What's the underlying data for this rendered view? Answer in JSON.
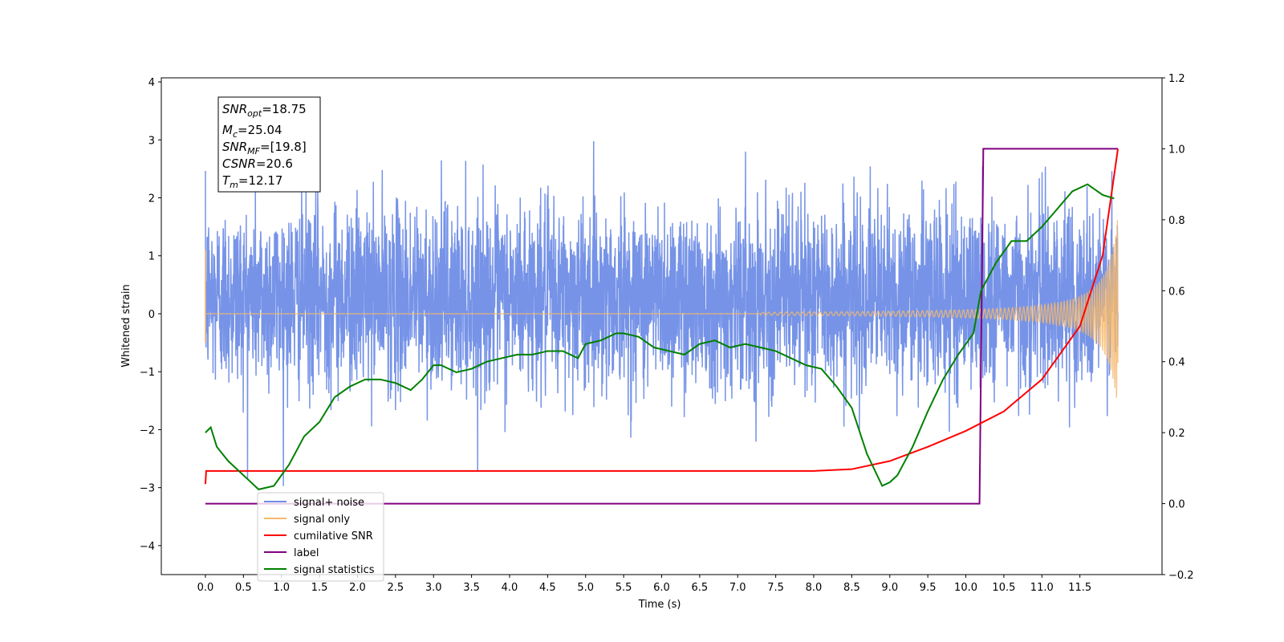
{
  "chart_data": {
    "type": "line",
    "xlabel": "Time (s)",
    "ylabel": "Whitened strain",
    "xlim": [
      -0.58,
      12.58
    ],
    "ylim": [
      -4.5,
      4.07
    ],
    "ylim_right": [
      -0.2,
      1.2
    ],
    "x_ticks": [
      "0.0",
      "0.5",
      "1.0",
      "1.5",
      "2.0",
      "2.5",
      "3.0",
      "3.5",
      "4.0",
      "4.5",
      "5.0",
      "5.5",
      "6.0",
      "6.5",
      "7.0",
      "7.5",
      "8.0",
      "8.5",
      "9.0",
      "9.5",
      "10.0",
      "10.5",
      "11.0",
      "11.5"
    ],
    "y_ticks_left": [
      "−4",
      "−3",
      "−2",
      "−1",
      "0",
      "1",
      "2",
      "3",
      "4"
    ],
    "y_ticks_right": [
      "−0.2",
      "0.0",
      "0.2",
      "0.4",
      "0.6",
      "0.8",
      "1.0",
      "1.2"
    ],
    "grid": false,
    "legend_position": "bottom-left",
    "colors": {
      "signal_noise": "#6f8de6",
      "signal_only": "#f5b96e",
      "cumulative_snr": "#ff0000",
      "label": "#800080",
      "signal_statistics": "#008000"
    },
    "legend": {
      "signal_noise": "signal+ noise",
      "signal_only": "signal only",
      "cumulative_snr": "cumilative SNR",
      "label": "label",
      "signal_statistics": "signal statistics"
    },
    "info_box": {
      "snr_opt_base": "SNR",
      "snr_opt_sub": "opt",
      "snr_opt_value": "=18.75",
      "mc_base": "M",
      "mc_sub": "c",
      "mc_value": "=25.04",
      "snr_mf_base": "SNR",
      "snr_mf_sub": "MF",
      "snr_mf_value": "=[19.8]",
      "csnr_base": "CSNR",
      "csnr_value": "=20.6",
      "tm_base": "T",
      "tm_sub": "m",
      "tm_value": "=12.17"
    },
    "noise_envelope": {
      "sigma": 0.78,
      "mean": 0.3,
      "x_start": 0.0,
      "x_end": 12.0
    },
    "signal_only_chirp": {
      "x_start": 0.0,
      "x_end": 12.0,
      "peak_amplitude": 1.7,
      "visible_from": 7.8
    },
    "cumulative_snr": {
      "x": [
        0.0,
        0.01,
        2.0,
        5.0,
        7.0,
        8.0,
        8.5,
        9.0,
        9.5,
        10.0,
        10.5,
        11.0,
        11.5,
        11.8,
        12.0
      ],
      "y": [
        0.055,
        0.092,
        0.092,
        0.092,
        0.092,
        0.092,
        0.097,
        0.12,
        0.16,
        0.205,
        0.26,
        0.35,
        0.5,
        0.7,
        1.0
      ]
    },
    "label": {
      "x": [
        0.0,
        10.18,
        10.23,
        12.0
      ],
      "y": [
        0.0,
        0.0,
        1.0,
        1.0
      ]
    },
    "signal_statistics": {
      "x": [
        0.0,
        0.07,
        0.15,
        0.3,
        0.5,
        0.7,
        0.9,
        1.1,
        1.3,
        1.5,
        1.7,
        1.9,
        2.0,
        2.1,
        2.3,
        2.5,
        2.7,
        2.85,
        3.0,
        3.1,
        3.3,
        3.5,
        3.7,
        3.9,
        4.1,
        4.3,
        4.5,
        4.7,
        4.9,
        5.0,
        5.2,
        5.4,
        5.5,
        5.7,
        5.9,
        6.1,
        6.3,
        6.5,
        6.7,
        6.9,
        7.1,
        7.3,
        7.5,
        7.7,
        7.9,
        8.1,
        8.3,
        8.5,
        8.7,
        8.9,
        9.0,
        9.1,
        9.3,
        9.5,
        9.7,
        9.9,
        10.1,
        10.2,
        10.4,
        10.6,
        10.8,
        11.0,
        11.2,
        11.4,
        11.6,
        11.8,
        11.95
      ],
      "y": [
        0.2,
        0.215,
        0.16,
        0.12,
        0.08,
        0.04,
        0.05,
        0.11,
        0.19,
        0.23,
        0.3,
        0.33,
        0.34,
        0.35,
        0.35,
        0.34,
        0.32,
        0.35,
        0.39,
        0.39,
        0.37,
        0.38,
        0.4,
        0.41,
        0.42,
        0.42,
        0.43,
        0.43,
        0.41,
        0.45,
        0.46,
        0.48,
        0.48,
        0.47,
        0.44,
        0.43,
        0.42,
        0.45,
        0.46,
        0.44,
        0.45,
        0.44,
        0.43,
        0.41,
        0.39,
        0.38,
        0.33,
        0.27,
        0.14,
        0.05,
        0.06,
        0.08,
        0.16,
        0.26,
        0.35,
        0.42,
        0.48,
        0.6,
        0.68,
        0.74,
        0.74,
        0.78,
        0.83,
        0.88,
        0.9,
        0.87,
        0.86
      ]
    }
  }
}
